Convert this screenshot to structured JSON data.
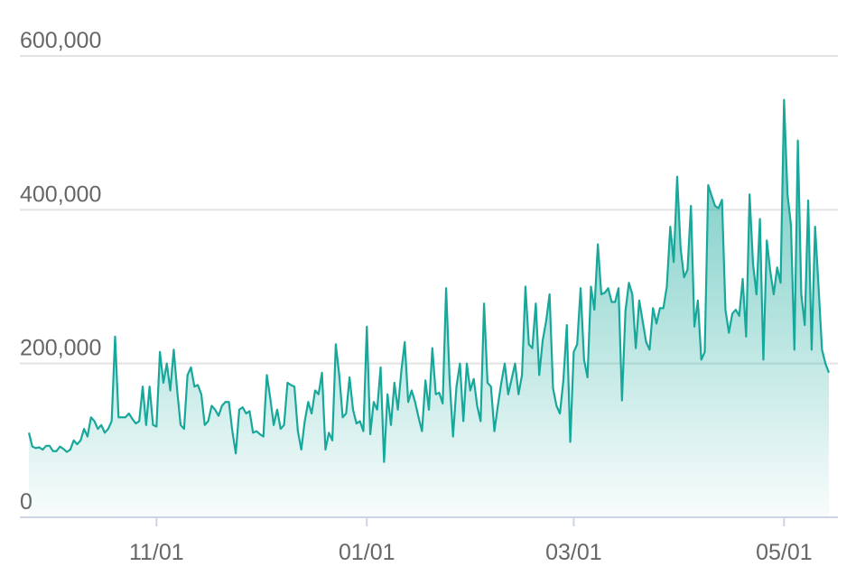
{
  "chart_data": {
    "type": "area",
    "color": "#17a89b",
    "grid": true,
    "x": [
      "09/25",
      "09/26",
      "09/27",
      "09/28",
      "09/29",
      "09/30",
      "10/01",
      "10/02",
      "10/03",
      "10/04",
      "10/05",
      "10/06",
      "10/07",
      "10/08",
      "10/09",
      "10/10",
      "10/11",
      "10/12",
      "10/13",
      "10/14",
      "10/15",
      "10/16",
      "10/17",
      "10/18",
      "10/19",
      "10/20",
      "10/21",
      "10/22",
      "10/23",
      "10/24",
      "10/25",
      "10/26",
      "10/27",
      "10/28",
      "10/29",
      "10/30",
      "10/31",
      "11/01",
      "11/02",
      "11/03",
      "11/04",
      "11/05",
      "11/06",
      "11/07",
      "11/08",
      "11/09",
      "11/10",
      "11/11",
      "11/12",
      "11/13",
      "11/14",
      "11/15",
      "11/16",
      "11/17",
      "11/18",
      "11/19",
      "11/20",
      "11/21",
      "11/22",
      "11/23",
      "11/24",
      "11/25",
      "11/26",
      "11/27",
      "11/28",
      "11/29",
      "11/30",
      "12/01",
      "12/02",
      "12/03",
      "12/04",
      "12/05",
      "12/06",
      "12/07",
      "12/08",
      "12/09",
      "12/10",
      "12/11",
      "12/12",
      "12/13",
      "12/14",
      "12/15",
      "12/16",
      "12/17",
      "12/18",
      "12/19",
      "12/20",
      "12/21",
      "12/22",
      "12/23",
      "12/24",
      "12/25",
      "12/26",
      "12/27",
      "12/28",
      "12/29",
      "12/30",
      "12/31",
      "01/01",
      "01/02",
      "01/03",
      "01/04",
      "01/05",
      "01/06",
      "01/07",
      "01/08",
      "01/09",
      "01/10",
      "01/11",
      "01/12",
      "01/13",
      "01/14",
      "01/15",
      "01/16",
      "01/17",
      "01/18",
      "01/19",
      "01/20",
      "01/21",
      "01/22",
      "01/23",
      "01/24",
      "01/25",
      "01/26",
      "01/27",
      "01/28",
      "01/29",
      "01/30",
      "01/31",
      "02/01",
      "02/02",
      "02/03",
      "02/04",
      "02/05",
      "02/06",
      "02/07",
      "02/08",
      "02/09",
      "02/10",
      "02/11",
      "02/12",
      "02/13",
      "02/14",
      "02/15",
      "02/16",
      "02/17",
      "02/18",
      "02/19",
      "02/20",
      "02/21",
      "02/22",
      "02/23",
      "02/24",
      "02/25",
      "02/26",
      "02/27",
      "02/28",
      "02/29",
      "03/01",
      "03/02",
      "03/03",
      "03/04",
      "03/05",
      "03/06",
      "03/07",
      "03/08",
      "03/09",
      "03/10",
      "03/11",
      "03/12",
      "03/13",
      "03/14",
      "03/15",
      "03/16",
      "03/17",
      "03/18",
      "03/19",
      "03/20",
      "03/21",
      "03/22",
      "03/23",
      "03/24",
      "03/25",
      "03/26",
      "03/27",
      "03/28",
      "03/29",
      "03/30",
      "03/31",
      "04/01",
      "04/02",
      "04/03",
      "04/04",
      "04/05",
      "04/06",
      "04/07",
      "04/08",
      "04/09",
      "04/10",
      "04/11",
      "04/12",
      "04/13",
      "04/14",
      "04/15",
      "04/16",
      "04/17",
      "04/18",
      "04/19",
      "04/20",
      "04/21",
      "04/22",
      "04/23",
      "04/24",
      "04/25",
      "04/26",
      "04/27",
      "04/28",
      "04/29",
      "04/30",
      "05/01",
      "05/02",
      "05/03",
      "05/04",
      "05/05",
      "05/06",
      "05/07",
      "05/08",
      "05/09",
      "05/10",
      "05/11",
      "05/12",
      "05/13",
      "05/14"
    ],
    "values": [
      110000,
      92000,
      90000,
      91000,
      88000,
      93000,
      93000,
      86000,
      86000,
      92000,
      89000,
      85000,
      88000,
      100000,
      95000,
      100000,
      115000,
      105000,
      130000,
      125000,
      115000,
      120000,
      110000,
      115000,
      125000,
      235000,
      130000,
      130000,
      130000,
      135000,
      128000,
      122000,
      125000,
      170000,
      120000,
      170000,
      120000,
      118000,
      215000,
      175000,
      200000,
      165000,
      218000,
      165000,
      120000,
      115000,
      185000,
      195000,
      170000,
      172000,
      160000,
      120000,
      125000,
      145000,
      140000,
      132000,
      145000,
      150000,
      150000,
      112000,
      83000,
      140000,
      143000,
      135000,
      138000,
      110000,
      112000,
      108000,
      105000,
      185000,
      155000,
      120000,
      140000,
      115000,
      120000,
      175000,
      172000,
      170000,
      112000,
      88000,
      125000,
      150000,
      135000,
      165000,
      160000,
      188000,
      88000,
      110000,
      100000,
      225000,
      185000,
      130000,
      135000,
      182000,
      140000,
      122000,
      125000,
      112000,
      248000,
      108000,
      150000,
      140000,
      195000,
      72000,
      160000,
      120000,
      175000,
      140000,
      190000,
      228000,
      150000,
      165000,
      150000,
      130000,
      112000,
      178000,
      140000,
      220000,
      160000,
      162000,
      148000,
      298000,
      180000,
      105000,
      170000,
      200000,
      125000,
      200000,
      165000,
      180000,
      145000,
      125000,
      278000,
      175000,
      170000,
      112000,
      145000,
      175000,
      200000,
      160000,
      180000,
      200000,
      160000,
      185000,
      300000,
      225000,
      220000,
      278000,
      185000,
      230000,
      255000,
      290000,
      168000,
      145000,
      135000,
      178000,
      250000,
      98000,
      215000,
      225000,
      298000,
      205000,
      182000,
      300000,
      270000,
      355000,
      290000,
      292000,
      298000,
      280000,
      280000,
      298000,
      152000,
      268000,
      305000,
      290000,
      220000,
      282000,
      255000,
      228000,
      218000,
      272000,
      252000,
      272000,
      272000,
      300000,
      378000,
      332000,
      443000,
      350000,
      312000,
      322000,
      405000,
      248000,
      282000,
      205000,
      215000,
      432000,
      418000,
      405000,
      402000,
      413000,
      270000,
      240000,
      265000,
      270000,
      262000,
      310000,
      235000,
      420000,
      330000,
      290000,
      388000,
      205000,
      360000,
      320000,
      290000,
      325000,
      305000,
      543000,
      420000,
      380000,
      218000,
      490000,
      290000,
      250000,
      412000,
      218000,
      378000,
      300000,
      218000,
      200000,
      188000
    ],
    "ylim": [
      0,
      600000
    ],
    "yticks": [
      0,
      {
        "value": 200000,
        "label": "200,000"
      },
      {
        "value": 400000,
        "label": "400,000"
      },
      {
        "value": 600000,
        "label": "600,000"
      }
    ],
    "xticks": [
      "11/01",
      "01/01",
      "03/01",
      "05/01"
    ]
  }
}
